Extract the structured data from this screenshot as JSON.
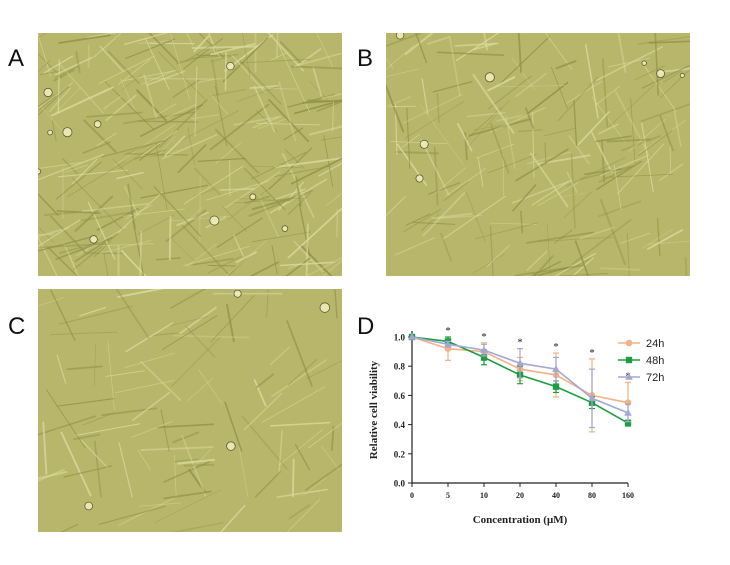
{
  "figure": {
    "panels": [
      {
        "letter": "A",
        "kind": "micrograph",
        "cell_density": "dense"
      },
      {
        "letter": "B",
        "kind": "micrograph",
        "cell_density": "medium"
      },
      {
        "letter": "C",
        "kind": "micrograph",
        "cell_density": "sparse"
      },
      {
        "letter": "D",
        "kind": "chart"
      }
    ]
  },
  "colors": {
    "micro_base": "#b7b66b",
    "micro_dark": "#8f8f47",
    "micro_light": "#dcdba0",
    "series_24h": "#f4b183",
    "series_48h": "#1a9e3f",
    "series_72h": "#a3a7d6"
  },
  "chart_data": {
    "type": "line",
    "title": "",
    "xlabel": "Concentration (μM)",
    "ylabel": "Relative cell viability",
    "categories": [
      "0",
      "5",
      "10",
      "20",
      "40",
      "80",
      "160"
    ],
    "ylim": [
      0.0,
      1.0
    ],
    "yticks": [
      "0.0",
      "0.2",
      "0.4",
      "0.6",
      "0.8",
      "1.0"
    ],
    "significance": [
      "",
      "*",
      "*",
      "*",
      "*",
      "*",
      "*"
    ],
    "legend_position": "top-right",
    "series": [
      {
        "name": "24h",
        "marker": "circle",
        "color": "#f4b183",
        "values": [
          1.0,
          0.92,
          0.9,
          0.78,
          0.74,
          0.6,
          0.55
        ],
        "errors": [
          0.0,
          0.08,
          0.06,
          0.08,
          0.15,
          0.25,
          0.14
        ]
      },
      {
        "name": "48h",
        "marker": "square",
        "color": "#1a9e3f",
        "values": [
          1.0,
          0.97,
          0.86,
          0.74,
          0.66,
          0.55,
          0.41
        ],
        "errors": [
          0.0,
          0.03,
          0.05,
          0.06,
          0.04,
          0.04,
          0.02
        ]
      },
      {
        "name": "72h",
        "marker": "triangle",
        "color": "#a3a7d6",
        "values": [
          1.0,
          0.95,
          0.91,
          0.82,
          0.78,
          0.58,
          0.48
        ],
        "errors": [
          0.0,
          0.02,
          0.04,
          0.1,
          0.08,
          0.2,
          0.06
        ]
      }
    ]
  }
}
